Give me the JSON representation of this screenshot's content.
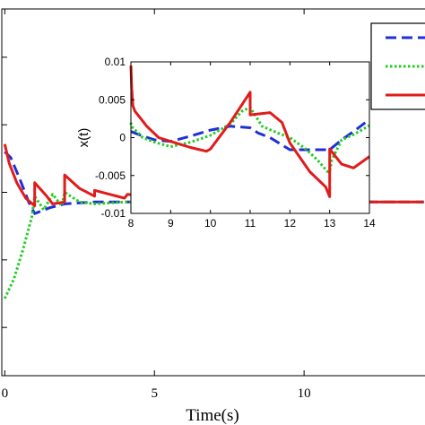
{
  "chart_data": [
    {
      "type": "line",
      "title": "",
      "xlabel": "Time(s)",
      "ylabel": "",
      "xlim": [
        -0.1,
        14.1
      ],
      "ylim": [
        -0.09,
        0.1
      ],
      "x_ticks": [
        0,
        5,
        10
      ],
      "y_ticks": [],
      "grid": false,
      "legend": {
        "position": "top-right",
        "entries": [
          "",
          "",
          ""
        ]
      },
      "series": [
        {
          "color": "#1f2fd6",
          "style": "dashed",
          "x": [
            0,
            0.2,
            0.5,
            0.8,
            1.0,
            1.5,
            2.0,
            2.5,
            3.0,
            4.0,
            5.0,
            6.0,
            7.0,
            8.0,
            10,
            12,
            14
          ],
          "y": [
            0.026,
            0.023,
            0.012,
            0.0,
            -0.006,
            -0.003,
            -0.001,
            -0.0005,
            0.0,
            0.0,
            0.0,
            0.0,
            0.0,
            0.001,
            0.0,
            0.0,
            0.0
          ]
        },
        {
          "color": "#22cc22",
          "style": "dotted",
          "x": [
            0,
            0.3,
            0.6,
            0.9,
            1.0,
            1.3,
            1.6,
            1.9,
            2.0,
            2.5,
            3.0,
            4.0,
            5.0,
            6.0,
            8.0,
            10,
            12,
            14
          ],
          "y": [
            -0.05,
            -0.04,
            -0.025,
            -0.008,
            0.003,
            -0.004,
            0.004,
            -0.002,
            0.005,
            0.0,
            -0.001,
            0.0,
            0.0,
            0.0,
            0.001,
            0.0,
            0.0,
            0.0
          ]
        },
        {
          "color": "#e01b1b",
          "style": "solid",
          "x": [
            0,
            0.15,
            0.4,
            0.7,
            1.0,
            1.0,
            1.4,
            1.6,
            2.0,
            2.0,
            2.5,
            3.0,
            3.0,
            4.0,
            4.1,
            5.0,
            6.0,
            7.0,
            8.0,
            10,
            12,
            14
          ],
          "y": [
            0.03,
            0.02,
            0.01,
            0.002,
            -0.002,
            0.01,
            0.003,
            -0.001,
            0.0,
            0.014,
            0.007,
            0.003,
            0.006,
            0.002,
            0.004,
            0.002,
            0.001,
            0.0,
            0.0,
            0.0,
            0.0,
            0.0
          ]
        }
      ]
    },
    {
      "type": "line",
      "title": "",
      "xlabel": "",
      "ylabel": "x(t)",
      "xlim": [
        8,
        14
      ],
      "ylim": [
        -0.01,
        0.01
      ],
      "x_ticks": [
        8,
        9,
        10,
        11,
        12,
        13,
        14
      ],
      "x_tick_labels": [
        "8",
        "9",
        "10",
        "11",
        "12",
        "13",
        "14"
      ],
      "y_ticks": [
        0.01,
        0.005,
        0,
        -0.005,
        -0.01
      ],
      "y_tick_labels": [
        "0.01",
        "0.005",
        "0",
        "-0.005",
        "-0.01"
      ],
      "grid": false,
      "series": [
        {
          "color": "#1f2fd6",
          "style": "dashed",
          "x": [
            8.0,
            8.3,
            8.6,
            9.0,
            9.5,
            10.0,
            10.5,
            11.0,
            11.2,
            11.5,
            12.0,
            12.5,
            13.0,
            13.3,
            13.6,
            14.0
          ],
          "y": [
            0.0008,
            0.0002,
            -0.0003,
            -0.0005,
            0.0002,
            0.001,
            0.0015,
            0.0013,
            0.0006,
            0.0,
            -0.0016,
            -0.0016,
            -0.0016,
            -0.0003,
            0.0008,
            0.0024
          ]
        },
        {
          "color": "#22cc22",
          "style": "dotted",
          "x": [
            8.0,
            8.01,
            8.3,
            8.6,
            9.0,
            9.5,
            10.0,
            10.5,
            10.8,
            11.0,
            11.3,
            11.7,
            12.0,
            12.4,
            12.7,
            12.95,
            13.0,
            13.05,
            13.3,
            13.6,
            14.0
          ],
          "y": [
            0.002,
            0.0015,
            0.0,
            -0.0006,
            -0.0012,
            -0.0006,
            0.0003,
            0.0018,
            0.0035,
            0.004,
            0.0015,
            0.0006,
            0.0,
            -0.0015,
            -0.003,
            -0.0045,
            -0.0045,
            -0.003,
            -0.0003,
            0.0004,
            0.0016
          ]
        },
        {
          "color": "#e01b1b",
          "style": "solid",
          "x": [
            8.0,
            8.02,
            8.05,
            8.1,
            8.4,
            8.7,
            9.0,
            9.5,
            9.9,
            10.0,
            10.5,
            11.0,
            11.0,
            11.5,
            11.8,
            12.0,
            12.5,
            12.9,
            13.0,
            13.0,
            13.3,
            13.6,
            14.0
          ],
          "y": [
            0.0095,
            0.0065,
            0.0042,
            0.0035,
            0.0015,
            0.0,
            -0.0005,
            -0.0013,
            -0.0018,
            -0.0015,
            0.002,
            0.006,
            0.003,
            0.0033,
            0.002,
            -0.0007,
            -0.0045,
            -0.0065,
            -0.0078,
            -0.0015,
            -0.0035,
            -0.004,
            -0.0025
          ]
        }
      ]
    }
  ]
}
